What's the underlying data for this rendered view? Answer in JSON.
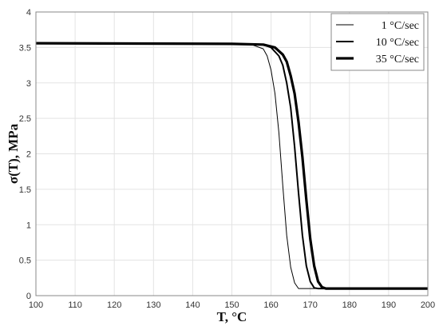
{
  "chart_data": {
    "type": "line",
    "title": "",
    "xlabel": "T, °C",
    "ylabel": "σ(T), MPa",
    "xlim": [
      100,
      200
    ],
    "ylim": [
      0,
      4
    ],
    "xticks": [
      100,
      110,
      120,
      130,
      140,
      150,
      160,
      170,
      180,
      190,
      200
    ],
    "yticks": [
      0,
      0.5,
      1,
      1.5,
      2,
      2.5,
      3,
      3.5,
      4
    ],
    "grid": true,
    "legend_position": "top-right",
    "series": [
      {
        "name": "1 °C/sec",
        "x": [
          100,
          150,
          155,
          158,
          159,
          160,
          161,
          162,
          163,
          164,
          165,
          166,
          167,
          168,
          170,
          180,
          200
        ],
        "y": [
          3.56,
          3.55,
          3.54,
          3.48,
          3.38,
          3.18,
          2.85,
          2.3,
          1.55,
          0.85,
          0.4,
          0.18,
          0.1,
          0.1,
          0.1,
          0.1,
          0.1
        ]
      },
      {
        "name": "10 °C/sec",
        "x": [
          100,
          150,
          158,
          160,
          162,
          163,
          164,
          165,
          166,
          167,
          168,
          169,
          170,
          171,
          172,
          175,
          200
        ],
        "y": [
          3.56,
          3.55,
          3.54,
          3.5,
          3.38,
          3.25,
          3.0,
          2.65,
          2.1,
          1.45,
          0.85,
          0.42,
          0.2,
          0.11,
          0.1,
          0.1,
          0.1
        ]
      },
      {
        "name": "35 °C/sec",
        "x": [
          100,
          150,
          158,
          161,
          163,
          164,
          165,
          166,
          167,
          168,
          169,
          170,
          171,
          172,
          173,
          174,
          200
        ],
        "y": [
          3.56,
          3.55,
          3.54,
          3.5,
          3.4,
          3.3,
          3.1,
          2.85,
          2.45,
          1.95,
          1.35,
          0.8,
          0.42,
          0.2,
          0.12,
          0.1,
          0.1
        ]
      }
    ],
    "series_stroke_widths": [
      1,
      2,
      3.2
    ],
    "colors": {
      "line": "#000000",
      "grid": "#e3e3e3",
      "axis": "#888888"
    }
  }
}
